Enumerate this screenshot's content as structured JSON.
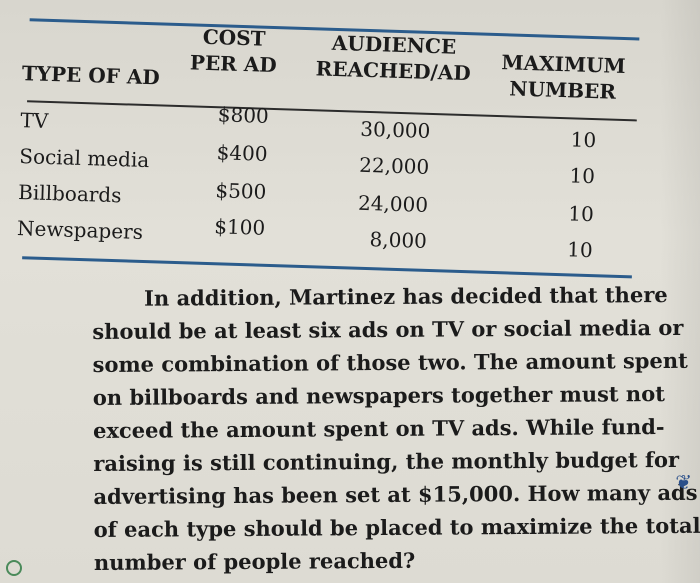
{
  "table": {
    "headers": {
      "type": "TYPE OF AD",
      "cost_line1": "COST",
      "cost_line2": "PER AD",
      "audience_line1": "AUDIENCE",
      "audience_line2": "REACHED/AD",
      "max_line1": "MAXIMUM",
      "max_line2": "NUMBER"
    },
    "rows": [
      {
        "type": "TV",
        "cost": "$800",
        "audience": "30,000",
        "max": "10"
      },
      {
        "type": "Social media",
        "cost": "$400",
        "audience": "22,000",
        "max": "10"
      },
      {
        "type": "Billboards",
        "cost": "$500",
        "audience": "24,000",
        "max": "10"
      },
      {
        "type": "Newspapers",
        "cost": "$100",
        "audience": "8,000",
        "max": "10"
      }
    ]
  },
  "paragraph": {
    "lines": [
      "In addition, Martinez has decided that there",
      "should be at least six ads on TV or social media or",
      "some combination of those two. The amount spent",
      "on billboards and newspapers together must not",
      "exceed the amount spent on TV ads. While fund-",
      "raising is still continuing, the monthly budget for",
      "advertising has been set at $15,000. How many ads",
      "of each type should be placed to maximize the total",
      "number of people reached?"
    ]
  }
}
